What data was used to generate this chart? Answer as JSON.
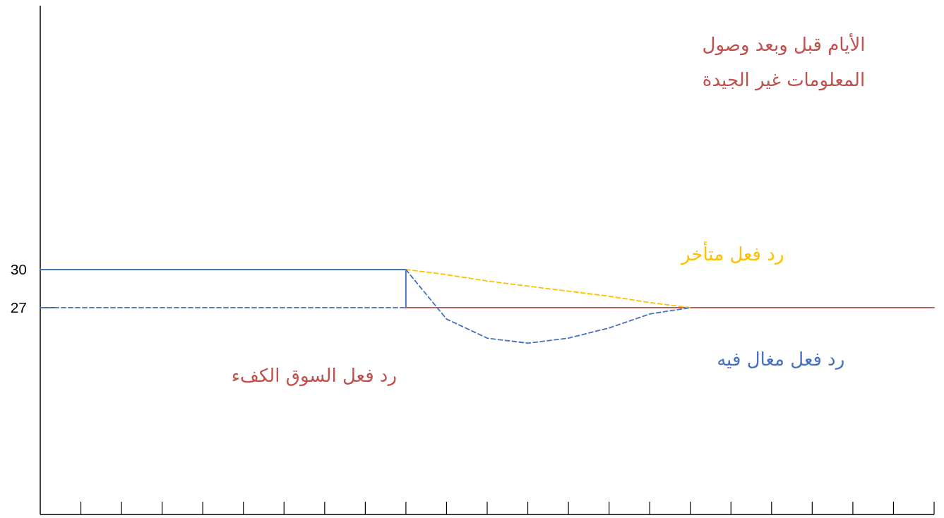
{
  "chart_data": {
    "type": "line",
    "title": "الأيام قبل وبعد وصول المعلومات غير الجيدة",
    "categories": [
      null,
      null,
      null,
      null,
      null,
      null,
      null,
      null,
      null,
      null,
      null,
      null,
      null,
      null,
      null,
      null,
      null,
      null,
      null,
      null,
      null,
      null,
      null
    ],
    "ylim": [
      10.7,
      50.8
    ],
    "yticks": [
      27,
      30
    ],
    "legend": false,
    "series": [
      {
        "type": "step",
        "color": "#4472c4",
        "line_style": "solid",
        "values": [
          30,
          30,
          30,
          30,
          30,
          30,
          30,
          30,
          30,
          27,
          null,
          null,
          null,
          null,
          null,
          null,
          null,
          null,
          null,
          null,
          null,
          null,
          null
        ]
      },
      {
        "color": "#4472c4",
        "line_style": "dashed",
        "values": [
          27,
          27,
          27,
          27,
          27,
          27,
          27,
          27,
          27,
          27,
          null,
          null,
          null,
          null,
          null,
          null,
          null,
          null,
          null,
          null,
          null,
          null,
          null
        ]
      },
      {
        "name": "رد فعل السوق الكفء",
        "color": "#c0504d",
        "line_style": "solid",
        "values": [
          null,
          null,
          null,
          null,
          null,
          null,
          null,
          null,
          null,
          27,
          27,
          27,
          27,
          27,
          27,
          27,
          27,
          27,
          27,
          27,
          27,
          27,
          27
        ]
      },
      {
        "name": "رد فعل متأخر",
        "color": "#ffc000",
        "line_style": "dashed",
        "values": [
          null,
          null,
          null,
          null,
          null,
          null,
          null,
          null,
          null,
          30,
          29.6,
          29.1,
          28.7,
          28.3,
          27.9,
          27.4,
          27,
          null,
          null,
          null,
          null,
          null,
          null
        ]
      },
      {
        "name": "رد فعل مغال فيه",
        "color": "#4472c4",
        "line_style": "dashed",
        "values": [
          null,
          null,
          null,
          null,
          null,
          null,
          null,
          null,
          null,
          30,
          26.1,
          24.6,
          24.2,
          24.6,
          25.4,
          26.5,
          27,
          null,
          null,
          null,
          null,
          null,
          null
        ]
      }
    ]
  }
}
